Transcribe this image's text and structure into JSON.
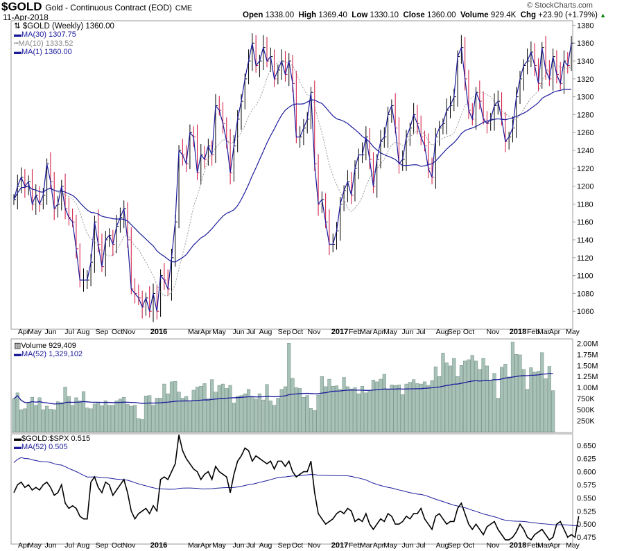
{
  "header": {
    "symbol": "$GOLD",
    "name": "Gold - Continuous Contract (EOD)",
    "exchange": "CME",
    "date": "11-Apr-2018",
    "watermark": "© StockCharts.com",
    "open_label": "Open",
    "open": "1338.00",
    "high_label": "High",
    "high": "1369.40",
    "low_label": "Low",
    "low": "1330.10",
    "close_label": "Close",
    "close": "1360.00",
    "volume_label": "Volume",
    "volume": "929.4K",
    "chg_label": "Chg",
    "chg": "+23.90 (+1.79%)",
    "up_color": "#008000"
  },
  "legend": {
    "price": "$GOLD (Weekly) 1360.00",
    "ma30": "MA(30) 1307.75",
    "ma10": "MA(10) 1333.52",
    "ma1": "MA(1) 1360.00",
    "volume": "Volume 929,409",
    "vol_ma": "MA(52) 1,329,102",
    "ratio": "$GOLD:$SPX 0.515",
    "ratio_ma": "MA(52) 0.505"
  },
  "colors": {
    "up": "#000000",
    "down": "#d0103a",
    "ma": "#1a1a9a",
    "ma10": "#999999",
    "volume": "#a9c2b8",
    "volume_edge": "#6a8a7e"
  },
  "chart_data": [
    {
      "type": "line",
      "title": "$GOLD (Weekly)",
      "ylim": [
        1040,
        1385
      ],
      "yticks": [
        1060,
        1080,
        1100,
        1120,
        1140,
        1160,
        1180,
        1200,
        1220,
        1240,
        1260,
        1280,
        1300,
        1320,
        1340,
        1360,
        1380
      ],
      "xlabels": [
        "Apr",
        "May",
        "Jun",
        "Jul",
        "Aug",
        "Sep",
        "Oct",
        "Nov",
        "2016",
        "Mar",
        "Apr",
        "May",
        "Jun",
        "Jul",
        "Aug",
        "Sep",
        "Oct",
        "Nov",
        "2017",
        "Feb",
        "Mar",
        "Apr",
        "May",
        "Jun",
        "Jul",
        "Aug",
        "Sep",
        "Oct",
        "Nov",
        "2018",
        "Feb",
        "Mar",
        "Apr",
        "May"
      ],
      "closes": [
        1185,
        1200,
        1210,
        1200,
        1205,
        1180,
        1190,
        1180,
        1190,
        1225,
        1205,
        1175,
        1180,
        1200,
        1175,
        1165,
        1160,
        1130,
        1095,
        1095,
        1095,
        1115,
        1160,
        1135,
        1110,
        1140,
        1145,
        1135,
        1155,
        1165,
        1175,
        1140,
        1085,
        1080,
        1075,
        1065,
        1075,
        1060,
        1080,
        1060,
        1100,
        1095,
        1085,
        1120,
        1160,
        1240,
        1235,
        1225,
        1260,
        1255,
        1215,
        1235,
        1230,
        1245,
        1235,
        1290,
        1285,
        1270,
        1250,
        1215,
        1245,
        1275,
        1295,
        1320,
        1340,
        1360,
        1335,
        1340,
        1355,
        1340,
        1345,
        1320,
        1330,
        1340,
        1325,
        1340,
        1315,
        1255,
        1255,
        1265,
        1275,
        1305,
        1225,
        1180,
        1185,
        1160,
        1135,
        1135,
        1150,
        1180,
        1195,
        1205,
        1190,
        1220,
        1235,
        1235,
        1255,
        1230,
        1200,
        1230,
        1250,
        1255,
        1280,
        1290,
        1265,
        1225,
        1230,
        1255,
        1265,
        1280,
        1270,
        1255,
        1245,
        1220,
        1210,
        1255,
        1265,
        1270,
        1285,
        1290,
        1300,
        1345,
        1355,
        1320,
        1285,
        1275,
        1305,
        1295,
        1275,
        1270,
        1275,
        1290,
        1295,
        1275,
        1250,
        1255,
        1265,
        1300,
        1320,
        1335,
        1340,
        1350,
        1335,
        1315,
        1355,
        1330,
        1320,
        1345,
        1325,
        1315,
        1340,
        1335,
        1360
      ],
      "ma_periods": [
        30,
        10,
        1
      ]
    },
    {
      "type": "bar",
      "title": "Volume",
      "ylim": [
        0,
        2100
      ],
      "yunit": "K",
      "yticks": [
        [
          "250K",
          250
        ],
        [
          "500K",
          500
        ],
        [
          "750K",
          750
        ],
        [
          "1.00M",
          1000
        ],
        [
          "1.25M",
          1250
        ],
        [
          "1.50M",
          1500
        ],
        [
          "1.75M",
          1750
        ],
        [
          "2.00M",
          2000
        ]
      ],
      "values": [
        750,
        880,
        500,
        520,
        660,
        780,
        600,
        770,
        500,
        580,
        510,
        500,
        680,
        660,
        1010,
        800,
        600,
        770,
        700,
        910,
        540,
        520,
        630,
        650,
        590,
        700,
        600,
        600,
        700,
        740,
        780,
        620,
        580,
        600,
        300,
        280,
        810,
        820,
        600,
        760,
        760,
        1080,
        860,
        1130,
        1140,
        900,
        760,
        800,
        700,
        940,
        1010,
        1030,
        1090,
        750,
        1180,
        900,
        1050,
        1080,
        980,
        1050,
        650,
        800,
        820,
        860,
        960,
        800,
        740,
        860,
        720,
        1070,
        700,
        600,
        760,
        960,
        1020,
        2000,
        1210,
        1000,
        980,
        780,
        820,
        530,
        480,
        830,
        1250,
        1020,
        1190,
        1030,
        1040,
        960,
        1230,
        1020,
        970,
        1000,
        860,
        1030,
        880,
        940,
        1170,
        1130,
        1190,
        1300,
        950,
        1060,
        1050,
        1060,
        840,
        1080,
        1120,
        1180,
        1090,
        1080,
        1130,
        1050,
        1160,
        1470,
        1250,
        1780,
        1560,
        1490,
        1660,
        1250,
        1500,
        1600,
        1630,
        1730,
        1600,
        1410,
        1660,
        1490,
        1160,
        1320,
        760,
        1460,
        1530,
        1240,
        2030,
        1750,
        1740,
        1410,
        960,
        1450,
        1350,
        1370,
        1790,
        1200,
        1480,
        930
      ],
      "ma_period": 52
    },
    {
      "type": "line",
      "title": "$GOLD:$SPX",
      "ylim": [
        0.462,
        0.672
      ],
      "yticks": [
        0.475,
        0.5,
        0.525,
        0.55,
        0.575,
        0.6,
        0.625,
        0.65
      ],
      "values": [
        0.56,
        0.575,
        0.58,
        0.57,
        0.575,
        0.565,
        0.57,
        0.565,
        0.575,
        0.58,
        0.57,
        0.555,
        0.56,
        0.575,
        0.54,
        0.53,
        0.535,
        0.53,
        0.515,
        0.51,
        0.51,
        0.58,
        0.59,
        0.57,
        0.56,
        0.58,
        0.575,
        0.555,
        0.565,
        0.575,
        0.585,
        0.56,
        0.525,
        0.51,
        0.52,
        0.525,
        0.53,
        0.52,
        0.535,
        0.525,
        0.585,
        0.59,
        0.585,
        0.6,
        0.615,
        0.67,
        0.64,
        0.625,
        0.615,
        0.605,
        0.6,
        0.585,
        0.595,
        0.6,
        0.585,
        0.61,
        0.6,
        0.595,
        0.59,
        0.56,
        0.595,
        0.62,
        0.63,
        0.645,
        0.64,
        0.62,
        0.63,
        0.625,
        0.62,
        0.615,
        0.62,
        0.605,
        0.62,
        0.62,
        0.61,
        0.62,
        0.6,
        0.59,
        0.595,
        0.6,
        0.6,
        0.62,
        0.56,
        0.52,
        0.51,
        0.5,
        0.505,
        0.51,
        0.52,
        0.525,
        0.52,
        0.53,
        0.525,
        0.505,
        0.51,
        0.505,
        0.52,
        0.5,
        0.49,
        0.5,
        0.51,
        0.505,
        0.52,
        0.515,
        0.5,
        0.5,
        0.505,
        0.515,
        0.51,
        0.52,
        0.52,
        0.53,
        0.51,
        0.5,
        0.49,
        0.515,
        0.52,
        0.51,
        0.5,
        0.505,
        0.505,
        0.53,
        0.54,
        0.52,
        0.5,
        0.49,
        0.5,
        0.49,
        0.48,
        0.495,
        0.5,
        0.505,
        0.49,
        0.48,
        0.47,
        0.47,
        0.475,
        0.485,
        0.5,
        0.49,
        0.475,
        0.47,
        0.48,
        0.485,
        0.49,
        0.48,
        0.47,
        0.475,
        0.5,
        0.505,
        0.49,
        0.475,
        0.48,
        0.475,
        0.515
      ],
      "ma_period": 52
    }
  ]
}
